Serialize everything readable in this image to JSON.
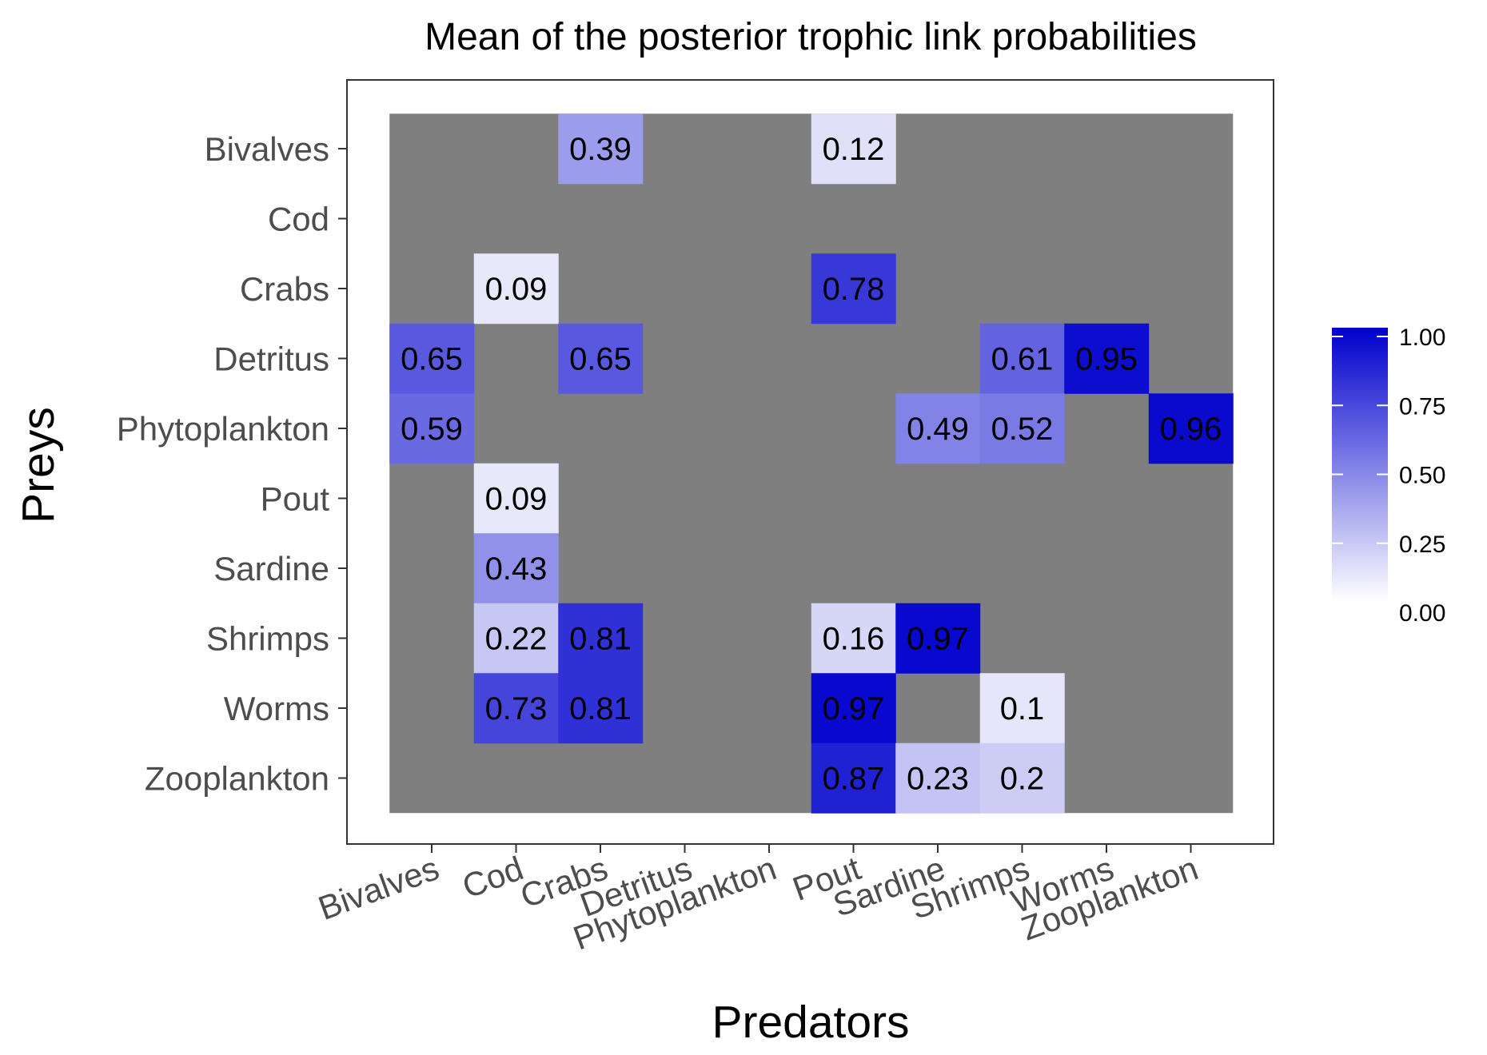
{
  "chart_data": {
    "type": "heatmap",
    "title": "Mean of the posterior trophic link probabilities",
    "xlabel": "Predators",
    "ylabel": "Preys",
    "x_categories": [
      "Bivalves",
      "Cod",
      "Crabs",
      "Detritus",
      "Phytoplankton",
      "Pout",
      "Sardine",
      "Shrimps",
      "Worms",
      "Zooplankton"
    ],
    "y_categories": [
      "Bivalves",
      "Cod",
      "Crabs",
      "Detritus",
      "Phytoplankton",
      "Pout",
      "Sardine",
      "Shrimps",
      "Worms",
      "Zooplankton"
    ],
    "cells": [
      {
        "prey": "Bivalves",
        "predator": "Crabs",
        "value": 0.39,
        "label": "0.39"
      },
      {
        "prey": "Bivalves",
        "predator": "Pout",
        "value": 0.12,
        "label": "0.12"
      },
      {
        "prey": "Crabs",
        "predator": "Cod",
        "value": 0.09,
        "label": "0.09"
      },
      {
        "prey": "Crabs",
        "predator": "Pout",
        "value": 0.78,
        "label": "0.78"
      },
      {
        "prey": "Detritus",
        "predator": "Bivalves",
        "value": 0.65,
        "label": "0.65"
      },
      {
        "prey": "Detritus",
        "predator": "Crabs",
        "value": 0.65,
        "label": "0.65"
      },
      {
        "prey": "Detritus",
        "predator": "Shrimps",
        "value": 0.61,
        "label": "0.61"
      },
      {
        "prey": "Detritus",
        "predator": "Worms",
        "value": 0.95,
        "label": "0.95"
      },
      {
        "prey": "Phytoplankton",
        "predator": "Bivalves",
        "value": 0.59,
        "label": "0.59"
      },
      {
        "prey": "Phytoplankton",
        "predator": "Sardine",
        "value": 0.49,
        "label": "0.49"
      },
      {
        "prey": "Phytoplankton",
        "predator": "Shrimps",
        "value": 0.52,
        "label": "0.52"
      },
      {
        "prey": "Phytoplankton",
        "predator": "Zooplankton",
        "value": 0.96,
        "label": "0.96"
      },
      {
        "prey": "Pout",
        "predator": "Cod",
        "value": 0.09,
        "label": "0.09"
      },
      {
        "prey": "Sardine",
        "predator": "Cod",
        "value": 0.43,
        "label": "0.43"
      },
      {
        "prey": "Shrimps",
        "predator": "Cod",
        "value": 0.22,
        "label": "0.22"
      },
      {
        "prey": "Shrimps",
        "predator": "Crabs",
        "value": 0.81,
        "label": "0.81"
      },
      {
        "prey": "Shrimps",
        "predator": "Pout",
        "value": 0.16,
        "label": "0.16"
      },
      {
        "prey": "Shrimps",
        "predator": "Sardine",
        "value": 0.97,
        "label": "0.97"
      },
      {
        "prey": "Worms",
        "predator": "Cod",
        "value": 0.73,
        "label": "0.73"
      },
      {
        "prey": "Worms",
        "predator": "Crabs",
        "value": 0.81,
        "label": "0.81"
      },
      {
        "prey": "Worms",
        "predator": "Pout",
        "value": 0.97,
        "label": "0.97"
      },
      {
        "prey": "Worms",
        "predator": "Shrimps",
        "value": 0.1,
        "label": "0.1"
      },
      {
        "prey": "Zooplankton",
        "predator": "Pout",
        "value": 0.87,
        "label": "0.87"
      },
      {
        "prey": "Zooplankton",
        "predator": "Sardine",
        "value": 0.23,
        "label": "0.23"
      },
      {
        "prey": "Zooplankton",
        "predator": "Shrimps",
        "value": 0.2,
        "label": "0.2"
      }
    ],
    "missing_color": "#7f7f7f",
    "color_scale": {
      "low": "#ffffff",
      "high": "#0000cd",
      "limits": [
        0,
        1
      ]
    },
    "legend": {
      "position": "right",
      "ticks": [
        {
          "value": 1.0,
          "label": "1.00"
        },
        {
          "value": 0.75,
          "label": "0.75"
        },
        {
          "value": 0.5,
          "label": "0.50"
        },
        {
          "value": 0.25,
          "label": "0.25"
        },
        {
          "value": 0.0,
          "label": "0.00"
        }
      ]
    },
    "grid": false,
    "panel_border": true
  }
}
